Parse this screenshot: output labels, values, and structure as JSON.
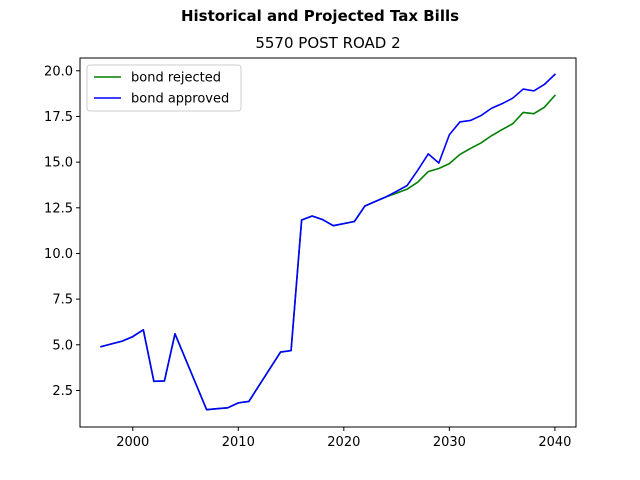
{
  "figure": {
    "suptitle": "Historical and Projected Tax Bills"
  },
  "chart_data": {
    "type": "line",
    "title": "5570 POST ROAD  2",
    "xlabel": "",
    "ylabel": "",
    "xlim": [
      1995,
      2042
    ],
    "ylim": [
      0.5,
      20.7
    ],
    "xticks": [
      2000,
      2010,
      2020,
      2030,
      2040
    ],
    "xtick_labels": [
      "2000",
      "2010",
      "2020",
      "2030",
      "2040"
    ],
    "yticks": [
      2.5,
      5.0,
      7.5,
      10.0,
      12.5,
      15.0,
      17.5,
      20.0
    ],
    "ytick_labels": [
      "2.5",
      "5.0",
      "7.5",
      "10.0",
      "12.5",
      "15.0",
      "17.5",
      "20.0"
    ],
    "grid": false,
    "legend_position": "upper-left",
    "series": [
      {
        "name": "bond rejected",
        "color": "#008000",
        "x": [
          1997,
          1998,
          1999,
          2000,
          2001,
          2002,
          2003,
          2004,
          2007,
          2008,
          2009,
          2010,
          2011,
          2014,
          2015,
          2016,
          2017,
          2018,
          2019,
          2021,
          2022,
          2023,
          2024,
          2025,
          2026,
          2027,
          2028,
          2029,
          2030,
          2031,
          2032,
          2033,
          2034,
          2035,
          2036,
          2037,
          2038,
          2039,
          2040
        ],
        "y": [
          4.9,
          5.05,
          5.2,
          5.45,
          5.82,
          3.0,
          3.02,
          5.6,
          1.45,
          1.5,
          1.55,
          1.82,
          1.9,
          4.6,
          4.68,
          11.83,
          12.05,
          11.85,
          11.52,
          11.75,
          12.6,
          12.85,
          13.1,
          13.3,
          13.52,
          13.9,
          14.48,
          14.65,
          14.92,
          15.42,
          15.75,
          16.05,
          16.45,
          16.78,
          17.1,
          17.72,
          17.65,
          18.0,
          18.65
        ]
      },
      {
        "name": "bond approved",
        "color": "#0000ff",
        "x": [
          1997,
          1998,
          1999,
          2000,
          2001,
          2002,
          2003,
          2004,
          2007,
          2008,
          2009,
          2010,
          2011,
          2014,
          2015,
          2016,
          2017,
          2018,
          2019,
          2021,
          2022,
          2023,
          2024,
          2025,
          2026,
          2027,
          2028,
          2029,
          2030,
          2031,
          2032,
          2033,
          2034,
          2035,
          2036,
          2037,
          2038,
          2039,
          2040
        ],
        "y": [
          4.9,
          5.05,
          5.2,
          5.45,
          5.82,
          3.0,
          3.02,
          5.6,
          1.45,
          1.5,
          1.55,
          1.82,
          1.9,
          4.6,
          4.68,
          11.83,
          12.05,
          11.85,
          11.52,
          11.75,
          12.6,
          12.85,
          13.1,
          13.4,
          13.72,
          14.55,
          15.45,
          14.95,
          16.5,
          17.2,
          17.28,
          17.55,
          17.95,
          18.2,
          18.5,
          19.0,
          18.9,
          19.25,
          19.8
        ]
      }
    ]
  }
}
